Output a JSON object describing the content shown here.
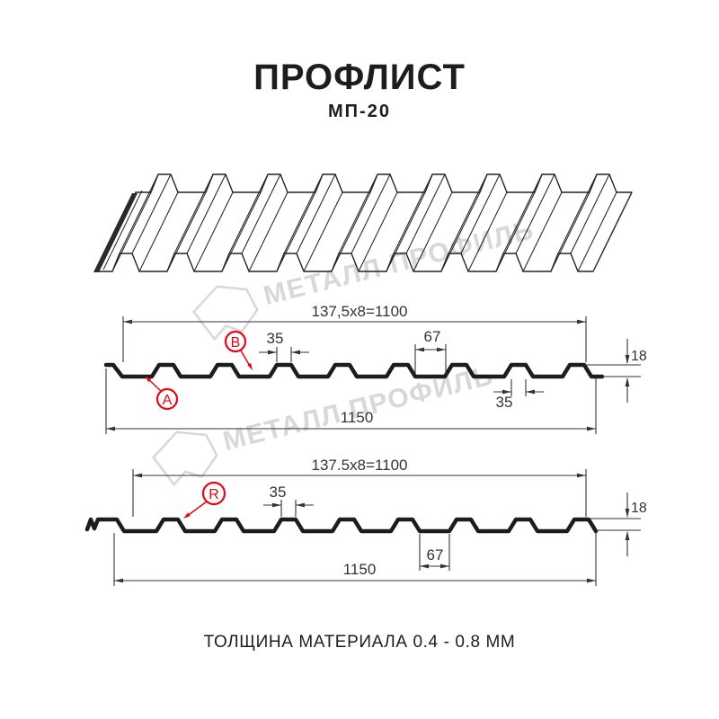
{
  "header": {
    "title": "ПРОФЛИСТ",
    "subtitle": "МП-20"
  },
  "footer": {
    "text": "ТОЛЩИНА МАТЕРИАЛА 0.4 - 0.8 ММ"
  },
  "watermark": {
    "text": "МЕТАЛЛ ПРОФИЛЬ"
  },
  "colors": {
    "accent_red": "#e30613",
    "line": "#1c1c1c",
    "dim": "#333333",
    "watermark": "#d8d8d8"
  },
  "diagram_top": {
    "width_formula": "137,5x8=1100",
    "overall_width": "1150",
    "rib_top_width": "35",
    "valley_width": "67",
    "profile_height": "18",
    "rib_bottom_width": "35",
    "label_a": "A",
    "label_b": "B"
  },
  "diagram_bottom": {
    "width_formula": "137.5x8=1100",
    "overall_width": "1150",
    "rib_top_width": "35",
    "valley_width": "67",
    "profile_height": "18",
    "label_r": "R"
  }
}
